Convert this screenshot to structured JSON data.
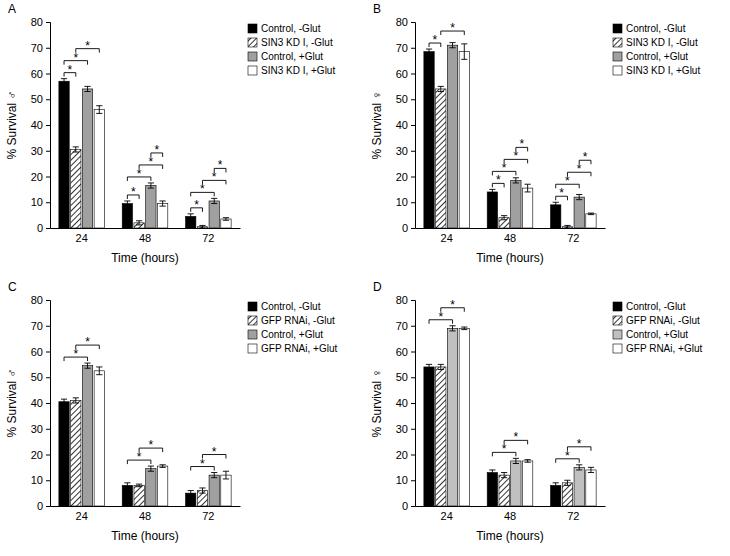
{
  "chart_data": [
    {
      "type": "bar",
      "title": "A",
      "x_label": "Time (hours)",
      "y_label": "% Survival ♂",
      "categories": [
        "24",
        "48",
        "72"
      ],
      "series": [
        {
          "name": "Control, -Glut",
          "color": "#000000",
          "values": [
            57,
            9.5,
            4.5
          ],
          "errors": [
            1,
            1,
            1
          ]
        },
        {
          "name": "SIN3 KD I, -Glut",
          "color": "#000000",
          "line_style": "hatched",
          "values": [
            30.5,
            2,
            0.5
          ],
          "errors": [
            1,
            0.8,
            0.5
          ]
        },
        {
          "name": "Control, +Glut",
          "color": "#a0a0a0",
          "values": [
            54,
            16.5,
            10.5
          ],
          "errors": [
            1,
            1,
            1
          ]
        },
        {
          "name": "SIN3 KD I, +Glut",
          "color": "#ffffff",
          "values": [
            46,
            9.5,
            3.5
          ],
          "errors": [
            1.5,
            1,
            0.5
          ]
        }
      ],
      "ylim": [
        0,
        80
      ],
      "yticks": [
        0,
        10,
        20,
        30,
        40,
        50,
        60,
        70,
        80
      ],
      "grid": false,
      "legend": "right",
      "annotations": [
        {
          "text": "*",
          "category": 0,
          "series": [
            0,
            1
          ]
        },
        {
          "text": "*",
          "category": 0,
          "series": [
            0,
            2
          ]
        },
        {
          "text": "*",
          "category": 0,
          "series": [
            1,
            3
          ]
        },
        {
          "text": "*",
          "category": 1,
          "series": [
            0,
            1
          ]
        },
        {
          "text": "*",
          "category": 1,
          "series": [
            0,
            2
          ]
        },
        {
          "text": "*",
          "category": 1,
          "series": [
            1,
            3
          ]
        },
        {
          "text": "*",
          "category": 1,
          "series": [
            2,
            3
          ]
        },
        {
          "text": "*",
          "category": 2,
          "series": [
            0,
            1
          ]
        },
        {
          "text": "*",
          "category": 2,
          "series": [
            0,
            2
          ]
        },
        {
          "text": "*",
          "category": 2,
          "series": [
            1,
            3
          ]
        },
        {
          "text": "*",
          "category": 2,
          "series": [
            2,
            3
          ]
        }
      ]
    },
    {
      "type": "bar",
      "title": "B",
      "x_label": "Time (hours)",
      "y_label": "% Survival ♀",
      "categories": [
        "24",
        "48",
        "72"
      ],
      "series": [
        {
          "name": "Control, -Glut",
          "color": "#000000",
          "values": [
            68.5,
            14,
            9
          ],
          "errors": [
            1,
            1,
            1
          ]
        },
        {
          "name": "SIN3 KD I, -Glut",
          "color": "#000000",
          "line_style": "hatched",
          "values": [
            54,
            4,
            0.5
          ],
          "errors": [
            1,
            0.8,
            0.5
          ]
        },
        {
          "name": "Control, +Glut",
          "color": "#a0a0a0",
          "values": [
            71,
            18.5,
            12
          ],
          "errors": [
            1,
            1,
            1
          ]
        },
        {
          "name": "SIN3 KD I, +Glut",
          "color": "#ffffff",
          "values": [
            68.5,
            15.5,
            5.5
          ],
          "errors": [
            3,
            1.5,
            0.3
          ]
        }
      ],
      "ylim": [
        0,
        80
      ],
      "yticks": [
        0,
        10,
        20,
        30,
        40,
        50,
        60,
        70,
        80
      ],
      "grid": false,
      "legend": "right",
      "annotations": [
        {
          "text": "*",
          "category": 0,
          "series": [
            0,
            1
          ]
        },
        {
          "text": "*",
          "category": 0,
          "series": [
            1,
            3
          ]
        },
        {
          "text": "*",
          "category": 1,
          "series": [
            0,
            1
          ]
        },
        {
          "text": "*",
          "category": 1,
          "series": [
            0,
            2
          ]
        },
        {
          "text": "*",
          "category": 1,
          "series": [
            1,
            3
          ]
        },
        {
          "text": "*",
          "category": 1,
          "series": [
            2,
            3
          ]
        },
        {
          "text": "*",
          "category": 2,
          "series": [
            0,
            1
          ]
        },
        {
          "text": "*",
          "category": 2,
          "series": [
            0,
            2
          ]
        },
        {
          "text": "*",
          "category": 2,
          "series": [
            1,
            3
          ]
        },
        {
          "text": "*",
          "category": 2,
          "series": [
            2,
            3
          ]
        }
      ]
    },
    {
      "type": "bar",
      "title": "C",
      "x_label": "Time (hours)",
      "y_label": "% Survival ♂",
      "categories": [
        "24",
        "48",
        "72"
      ],
      "series": [
        {
          "name": "Control, -Glut",
          "color": "#000000",
          "values": [
            40.5,
            8,
            5
          ],
          "errors": [
            1,
            1,
            1
          ]
        },
        {
          "name": "GFP RNAi, -Glut",
          "color": "#000000",
          "line_style": "hatched",
          "values": [
            41,
            8,
            6
          ],
          "errors": [
            1,
            0.5,
            1
          ]
        },
        {
          "name": "Control, +Glut",
          "color": "#a0a0a0",
          "values": [
            54.5,
            14.5,
            12
          ],
          "errors": [
            1,
            1,
            1
          ]
        },
        {
          "name": "GFP RNAi, +Glut",
          "color": "#ffffff",
          "values": [
            52.5,
            15.5,
            12
          ],
          "errors": [
            1.5,
            0.5,
            1.5
          ]
        }
      ],
      "ylim": [
        0,
        80
      ],
      "yticks": [
        0,
        10,
        20,
        30,
        40,
        50,
        60,
        70,
        80
      ],
      "grid": false,
      "legend": "right",
      "annotations": [
        {
          "text": "*",
          "category": 0,
          "series": [
            0,
            2
          ]
        },
        {
          "text": "*",
          "category": 0,
          "series": [
            1,
            3
          ]
        },
        {
          "text": "*",
          "category": 1,
          "series": [
            0,
            2
          ]
        },
        {
          "text": "*",
          "category": 1,
          "series": [
            1,
            3
          ]
        },
        {
          "text": "*",
          "category": 2,
          "series": [
            0,
            2
          ]
        },
        {
          "text": "*",
          "category": 2,
          "series": [
            1,
            3
          ]
        }
      ]
    },
    {
      "type": "bar",
      "title": "D",
      "x_label": "Time (hours)",
      "y_label": "% Survival ♀",
      "categories": [
        "24",
        "48",
        "72"
      ],
      "series": [
        {
          "name": "Control, -Glut",
          "color": "#000000",
          "values": [
            54,
            13,
            8
          ],
          "errors": [
            1,
            1,
            1
          ]
        },
        {
          "name": "GFP RNAi, -Glut",
          "color": "#000000",
          "line_style": "hatched",
          "values": [
            54,
            12,
            9
          ],
          "errors": [
            1,
            1,
            1
          ]
        },
        {
          "name": "Control, +Glut",
          "color": "#c0c0c0",
          "values": [
            69,
            17.5,
            15
          ],
          "errors": [
            1,
            1,
            1
          ]
        },
        {
          "name": "GFP RNAi, +Glut",
          "color": "#ffffff",
          "values": [
            69,
            17.5,
            14
          ],
          "errors": [
            0.5,
            0.5,
            1
          ]
        }
      ],
      "ylim": [
        0,
        80
      ],
      "yticks": [
        0,
        10,
        20,
        30,
        40,
        50,
        60,
        70,
        80
      ],
      "grid": false,
      "legend": "right",
      "annotations": [
        {
          "text": "*",
          "category": 0,
          "series": [
            0,
            2
          ]
        },
        {
          "text": "*",
          "category": 0,
          "series": [
            1,
            3
          ]
        },
        {
          "text": "*",
          "category": 1,
          "series": [
            0,
            2
          ]
        },
        {
          "text": "*",
          "category": 1,
          "series": [
            1,
            3
          ]
        },
        {
          "text": "*",
          "category": 2,
          "series": [
            0,
            2
          ]
        },
        {
          "text": "*",
          "category": 2,
          "series": [
            1,
            3
          ]
        }
      ]
    }
  ]
}
